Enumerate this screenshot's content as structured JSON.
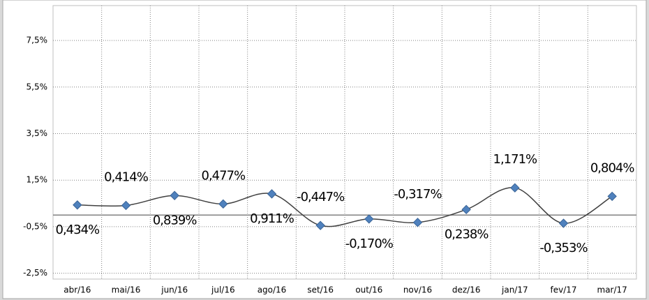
{
  "chart_data": {
    "type": "line",
    "categories": [
      "abr/16",
      "mai/16",
      "jun/16",
      "jul/16",
      "ago/16",
      "set/16",
      "out/16",
      "nov/16",
      "dez/16",
      "jan/17",
      "fev/17",
      "mar/17"
    ],
    "series": [
      {
        "name": null,
        "color": "#4f81bd",
        "values": [
          0.434,
          0.414,
          0.839,
          0.477,
          0.911,
          -0.447,
          -0.17,
          -0.317,
          0.238,
          1.171,
          -0.353,
          0.804
        ],
        "value_labels": [
          "0,434%",
          "0,414%",
          "0,839%",
          "0,477%",
          "0,911%",
          "-0,447%",
          "-0,170%",
          "-0,317%",
          "0,238%",
          "1,171%",
          "-0,353%",
          "0,804%"
        ]
      }
    ],
    "ylim": [
      -2.75,
      9
    ],
    "yticks": [
      {
        "value": -2.5,
        "label": "-2,5%"
      },
      {
        "value": -0.5,
        "label": "-0,5%"
      },
      {
        "value": 1.5,
        "label": "1,5%"
      },
      {
        "value": 3.5,
        "label": "3,5%"
      },
      {
        "value": 5.5,
        "label": "5,5%"
      },
      {
        "value": 7.5,
        "label": "7,5%"
      }
    ],
    "grid": true
  }
}
